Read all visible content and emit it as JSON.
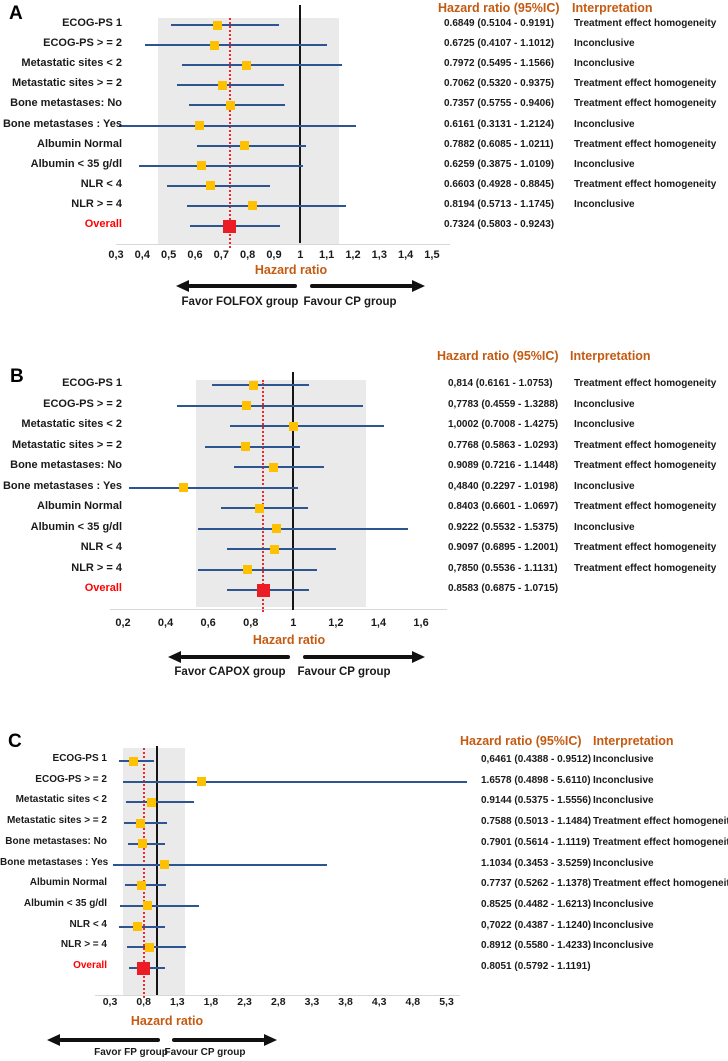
{
  "figure": {
    "colors": {
      "header_orange": "#C55A11",
      "marker_orange": "#FFC000",
      "ci_line_blue": "#2F5590",
      "overall_red": "#EC1C24",
      "dotted_red": "#F3262C",
      "band_gray": "#EAEAEA",
      "no_effect_black": "#151515"
    }
  },
  "chart_data": [
    {
      "type": "forest",
      "panel_letter": "A",
      "col_headers": {
        "hr": "Hazard ratio (95%IC)",
        "interpretation": "Interpretation"
      },
      "axis": {
        "min": 0.3,
        "max": 1.5,
        "title": "Hazard ratio",
        "ticks": [
          0.3,
          0.4,
          0.5,
          0.6,
          0.7,
          0.8,
          0.9,
          1,
          1.1,
          1.2,
          1.3,
          1.4,
          1.5
        ],
        "tick_labels": [
          "0,3",
          "0,4",
          "0,5",
          "0,6",
          "0,7",
          "0,8",
          "0,9",
          "1",
          "1,1",
          "1,2",
          "1,3",
          "1,4",
          "1,5"
        ]
      },
      "equivalence_band": [
        0.46,
        1.148
      ],
      "no_effect_line": 1.0,
      "overall_line": 0.7324,
      "arrows": {
        "left": "Favor FOLFOX group",
        "right": "Favour CP group"
      },
      "rows": [
        {
          "label": "ECOG-PS 1",
          "hr": 0.6849,
          "ci_low": 0.5104,
          "ci_high": 0.9191,
          "hr_text": "0.6849 (0.5104 - 0.9191)",
          "interpretation": "Treatment effect homogeneity",
          "overall": false
        },
        {
          "label": "ECOG-PS > = 2",
          "hr": 0.6725,
          "ci_low": 0.4107,
          "ci_high": 1.1012,
          "hr_text": "0.6725 (0.4107 - 1.1012)",
          "interpretation": "Inconclusive",
          "overall": false
        },
        {
          "label": "Metastatic sites < 2",
          "hr": 0.7972,
          "ci_low": 0.5495,
          "ci_high": 1.1566,
          "hr_text": "0.7972 (0.5495 - 1.1566)",
          "interpretation": "Inconclusive",
          "overall": false
        },
        {
          "label": "Metastatic sites > = 2",
          "hr": 0.7062,
          "ci_low": 0.532,
          "ci_high": 0.9375,
          "hr_text": "0.7062 (0.5320 - 0.9375)",
          "interpretation": "Treatment effect homogeneity",
          "overall": false
        },
        {
          "label": "Bone metastases: No",
          "hr": 0.7357,
          "ci_low": 0.5755,
          "ci_high": 0.9406,
          "hr_text": "0.7357 (0.5755 - 0.9406)",
          "interpretation": "Treatment effect homogeneity",
          "overall": false
        },
        {
          "label": "Bone metastases : Yes",
          "hr": 0.6161,
          "ci_low": 0.3131,
          "ci_high": 1.2124,
          "hr_text": "0.6161 (0.3131 - 1.2124)",
          "interpretation": "Inconclusive",
          "overall": false
        },
        {
          "label": "Albumin Normal",
          "hr": 0.7882,
          "ci_low": 0.6085,
          "ci_high": 1.0211,
          "hr_text": "0.7882 (0.6085 - 1.0211)",
          "interpretation": "Treatment effect homogeneity",
          "overall": false
        },
        {
          "label": "Albumin < 35 g/dl",
          "hr": 0.6259,
          "ci_low": 0.3875,
          "ci_high": 1.0109,
          "hr_text": "0.6259 (0.3875 - 1.0109)",
          "interpretation": "Inconclusive",
          "overall": false
        },
        {
          "label": "NLR < 4",
          "hr": 0.6603,
          "ci_low": 0.4928,
          "ci_high": 0.8845,
          "hr_text": "0.6603 (0.4928 - 0.8845)",
          "interpretation": "Treatment effect homogeneity",
          "overall": false
        },
        {
          "label": "NLR > =  4",
          "hr": 0.8194,
          "ci_low": 0.5713,
          "ci_high": 1.1745,
          "hr_text": "0.8194 (0.5713 - 1.1745)",
          "interpretation": "Inconclusive",
          "overall": false
        },
        {
          "label": "Overall",
          "hr": 0.7324,
          "ci_low": 0.5803,
          "ci_high": 0.9243,
          "hr_text": "0.7324 (0.5803 - 0.9243)",
          "interpretation": "",
          "overall": true
        }
      ]
    },
    {
      "type": "forest",
      "panel_letter": "B",
      "col_headers": {
        "hr": "Hazard ratio (95%IC)",
        "interpretation": "Interpretation"
      },
      "axis": {
        "min": 0.2,
        "max": 1.6,
        "title": "Hazard ratio",
        "ticks": [
          0.2,
          0.4,
          0.6,
          0.8,
          1,
          1.2,
          1.4,
          1.6
        ],
        "tick_labels": [
          "0,2",
          "0,4",
          "0,6",
          "0,8",
          "1",
          "1,2",
          "1,4",
          "1,6"
        ]
      },
      "equivalence_band": [
        0.542,
        1.341
      ],
      "no_effect_line": 1.0,
      "overall_line": 0.8583,
      "arrows": {
        "left": "Favor CAPOX group",
        "right": "Favour CP group"
      },
      "rows": [
        {
          "label": "ECOG-PS 1",
          "hr": 0.814,
          "ci_low": 0.6161,
          "ci_high": 1.0753,
          "hr_text": "0,814 (0.6161 - 1.0753)",
          "interpretation": "Treatment effect homogeneity",
          "overall": false
        },
        {
          "label": "ECOG-PS > = 2",
          "hr": 0.7783,
          "ci_low": 0.4559,
          "ci_high": 1.3288,
          "hr_text": "0,7783 (0.4559 - 1.3288)",
          "interpretation": "Inconclusive",
          "overall": false
        },
        {
          "label": "Metastatic sites < 2",
          "hr": 1.0002,
          "ci_low": 0.7008,
          "ci_high": 1.4275,
          "hr_text": "1,0002 (0.7008 - 1.4275)",
          "interpretation": "Inconclusive",
          "overall": false
        },
        {
          "label": "Metastatic sites > = 2",
          "hr": 0.7768,
          "ci_low": 0.5863,
          "ci_high": 1.0293,
          "hr_text": "0.7768 (0.5863 - 1.0293)",
          "interpretation": "Treatment effect homogeneity",
          "overall": false
        },
        {
          "label": "Bone metastases: No",
          "hr": 0.9089,
          "ci_low": 0.7216,
          "ci_high": 1.1448,
          "hr_text": "0.9089 (0.7216 - 1.1448)",
          "interpretation": "Treatment effect homogeneity",
          "overall": false
        },
        {
          "label": "Bone metastases : Yes",
          "hr": 0.484,
          "ci_low": 0.2297,
          "ci_high": 1.0198,
          "hr_text": "0,4840 (0.2297 - 1.0198)",
          "interpretation": "Inconclusive",
          "overall": false
        },
        {
          "label": "Albumin Normal",
          "hr": 0.8403,
          "ci_low": 0.6601,
          "ci_high": 1.0697,
          "hr_text": "0.8403 (0.6601 - 1.0697)",
          "interpretation": "Treatment effect homogeneity",
          "overall": false
        },
        {
          "label": "Albumin < 35 g/dl",
          "hr": 0.9222,
          "ci_low": 0.5532,
          "ci_high": 1.5375,
          "hr_text": "0.9222 (0.5532 - 1.5375)",
          "interpretation": "Inconclusive",
          "overall": false
        },
        {
          "label": "NLR < 4",
          "hr": 0.9097,
          "ci_low": 0.6895,
          "ci_high": 1.2001,
          "hr_text": "0.9097 (0.6895 - 1.2001)",
          "interpretation": "Treatment effect homogeneity",
          "overall": false
        },
        {
          "label": "NLR > =  4",
          "hr": 0.785,
          "ci_low": 0.5536,
          "ci_high": 1.1131,
          "hr_text": "0,7850 (0.5536 - 1.1131)",
          "interpretation": "Treatment effect homogeneity",
          "overall": false
        },
        {
          "label": "Overall",
          "hr": 0.8583,
          "ci_low": 0.6875,
          "ci_high": 1.0715,
          "hr_text": "0.8583 (0.6875 - 1.0715)",
          "interpretation": "",
          "overall": true
        }
      ]
    },
    {
      "type": "forest",
      "panel_letter": "C",
      "col_headers": {
        "hr": "Hazard ratio (95%IC)",
        "interpretation": "Interpretation"
      },
      "axis": {
        "min": 0.3,
        "max": 5.3,
        "title": "Hazard ratio",
        "ticks": [
          0.3,
          0.8,
          1.3,
          1.8,
          2.3,
          2.8,
          3.3,
          3.8,
          4.3,
          4.8,
          5.3
        ],
        "tick_labels": [
          "0,3",
          "0,8",
          "1,3",
          "1,8",
          "2,3",
          "2,8",
          "3,3",
          "3,8",
          "4,3",
          "4,8",
          "5,3"
        ]
      },
      "equivalence_band": [
        0.489,
        1.419
      ],
      "no_effect_line": 1.0,
      "overall_line": 0.8051,
      "arrows": {
        "left": "Favor FP group",
        "right": "Favour CP group"
      },
      "rows": [
        {
          "label": "ECOG-PS 1",
          "hr": 0.6461,
          "ci_low": 0.4388,
          "ci_high": 0.9512,
          "hr_text": "0,6461 (0.4388 - 0.9512)",
          "interpretation": "Inconclusive",
          "overall": false
        },
        {
          "label": "ECOG-PS > = 2",
          "hr": 1.6578,
          "ci_low": 0.4898,
          "ci_high": 5.611,
          "hr_text": "1.6578 (0.4898 - 5.6110)",
          "interpretation": "Inconclusive",
          "overall": false
        },
        {
          "label": "Metastatic sites < 2",
          "hr": 0.9144,
          "ci_low": 0.5375,
          "ci_high": 1.5556,
          "hr_text": "0.9144 (0.5375 - 1.5556)",
          "interpretation": "Inconclusive",
          "overall": false
        },
        {
          "label": "Metastatic sites > = 2",
          "hr": 0.7588,
          "ci_low": 0.5013,
          "ci_high": 1.1484,
          "hr_text": "0.7588 (0.5013 - 1.1484)",
          "interpretation": "Treatment effect homogeneity",
          "overall": false
        },
        {
          "label": "Bone metastases: No",
          "hr": 0.7901,
          "ci_low": 0.5614,
          "ci_high": 1.1119,
          "hr_text": "0.7901 (0.5614 - 1.1119)",
          "interpretation": "Treatment effect homogeneity",
          "overall": false
        },
        {
          "label": "Bone metastases : Yes",
          "hr": 1.1034,
          "ci_low": 0.3453,
          "ci_high": 3.5259,
          "hr_text": "1.1034 (0.3453 - 3.5259)",
          "interpretation": "Inconclusive",
          "overall": false
        },
        {
          "label": "Albumin Normal",
          "hr": 0.7737,
          "ci_low": 0.5262,
          "ci_high": 1.1378,
          "hr_text": "0.7737 (0.5262 - 1.1378)",
          "interpretation": "Treatment effect homogeneity",
          "overall": false
        },
        {
          "label": "Albumin < 35 g/dl",
          "hr": 0.8525,
          "ci_low": 0.4482,
          "ci_high": 1.6213,
          "hr_text": "0.8525 (0.4482 - 1.6213)",
          "interpretation": "Inconclusive",
          "overall": false
        },
        {
          "label": "NLR < 4",
          "hr": 0.7022,
          "ci_low": 0.4387,
          "ci_high": 1.124,
          "hr_text": "0,7022 (0.4387 - 1.1240)",
          "interpretation": "Inconclusive",
          "overall": false
        },
        {
          "label": "NLR > =  4",
          "hr": 0.8912,
          "ci_low": 0.558,
          "ci_high": 1.4233,
          "hr_text": "0.8912 (0.5580 - 1.4233)",
          "interpretation": "Inconclusive",
          "overall": false
        },
        {
          "label": "Overall",
          "hr": 0.8051,
          "ci_low": 0.5792,
          "ci_high": 1.1191,
          "hr_text": "0.8051 (0.5792 - 1.1191)",
          "interpretation": "",
          "overall": true
        }
      ]
    }
  ]
}
